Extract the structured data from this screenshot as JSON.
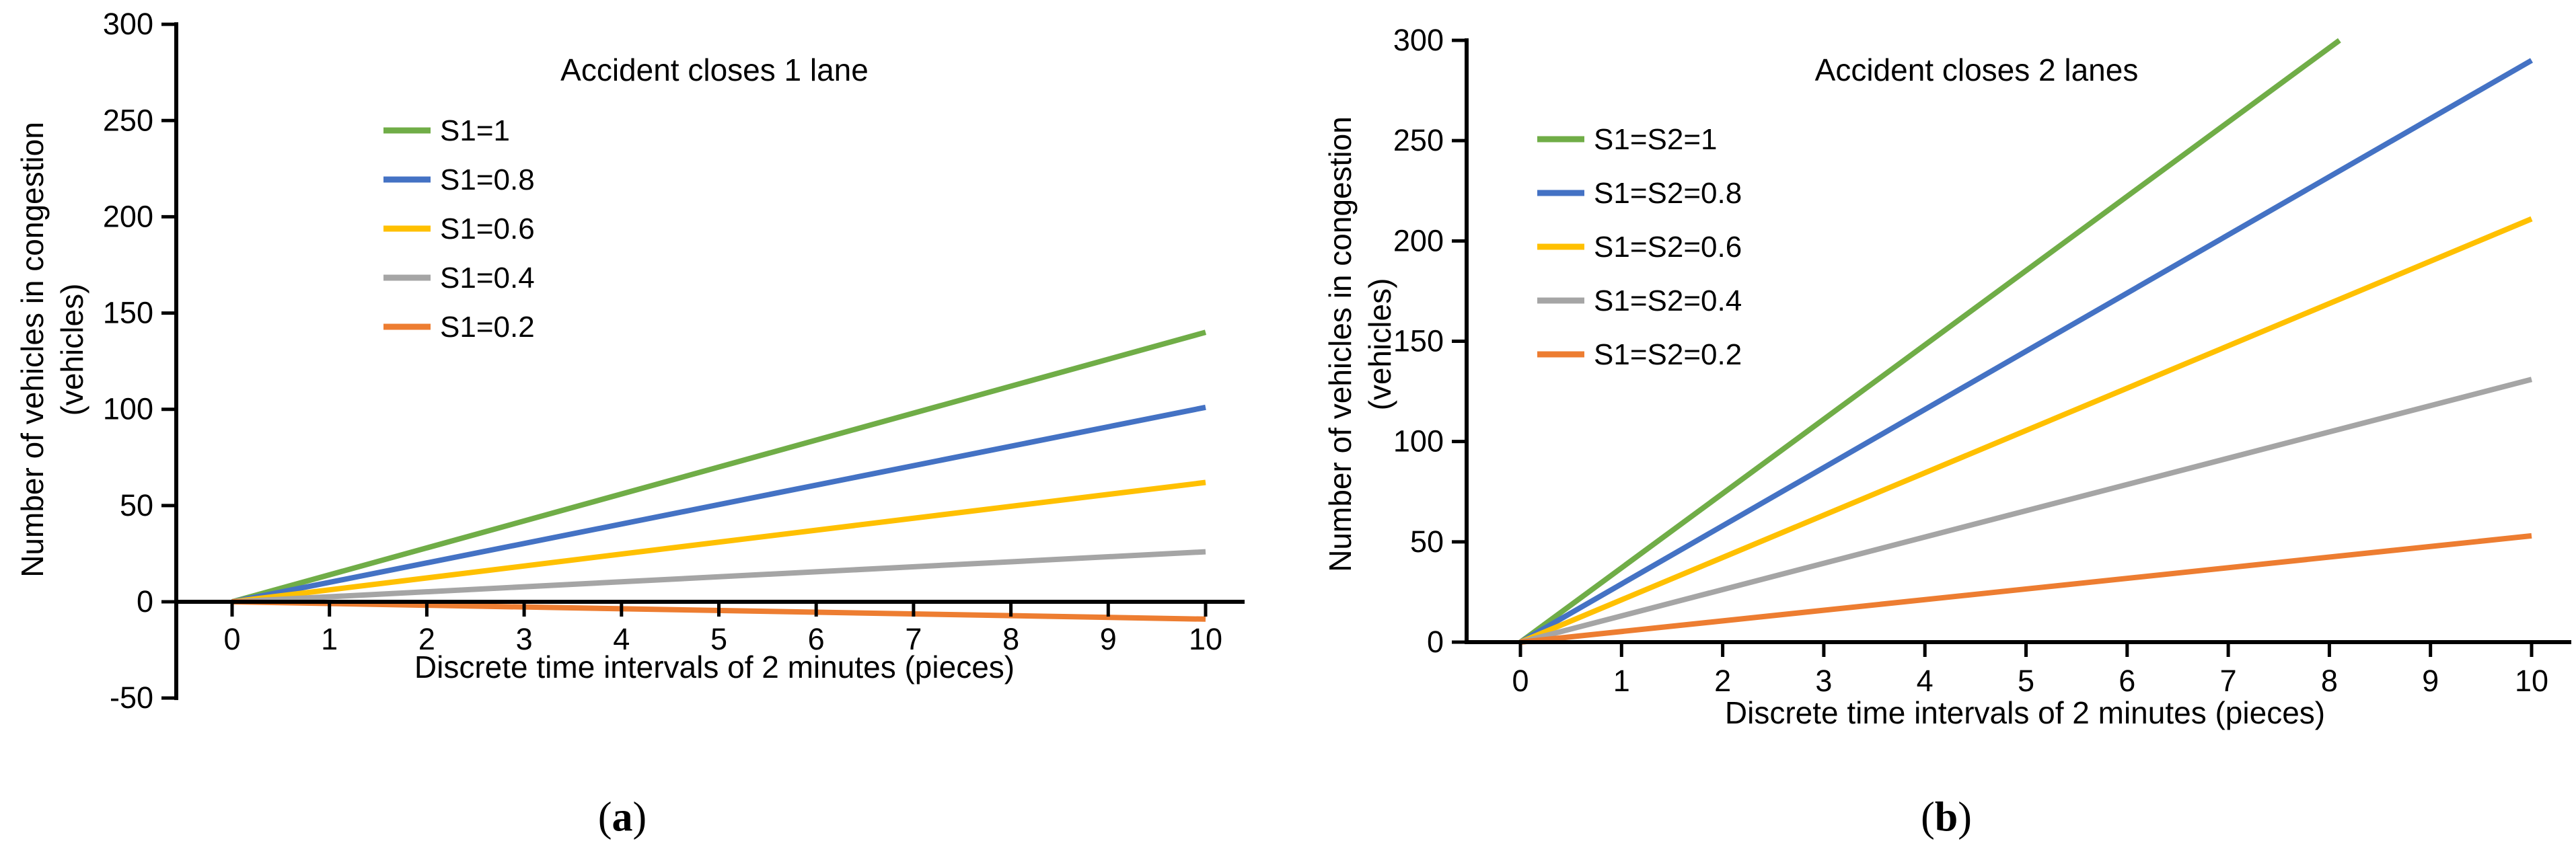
{
  "figure": {
    "background": "#ffffff",
    "captions": [
      {
        "open": "(",
        "letter": "a",
        "close": ")"
      },
      {
        "open": "(",
        "letter": "b",
        "close": ")"
      }
    ]
  },
  "chart_data": [
    {
      "id": "a",
      "type": "line",
      "title": "Accident closes 1 lane",
      "xlabel": "Discrete time intervals of 2 minutes (pieces)",
      "ylabel": "Number of vehicles in congestion (vehicles)",
      "ylabel_line1": "Number of vehicles in congestion",
      "ylabel_line2": "(vehicles)",
      "xlim": [
        0,
        10
      ],
      "ylim": [
        -50,
        300
      ],
      "x_ticks": [
        0,
        1,
        2,
        3,
        4,
        5,
        6,
        7,
        8,
        9,
        10
      ],
      "y_ticks": [
        300,
        250,
        200,
        150,
        100,
        50,
        0,
        -50
      ],
      "grid": false,
      "legend_position": "inside upper-left",
      "series": [
        {
          "name": "S1=1",
          "color": "#70AD47",
          "points": [
            [
              0,
              0
            ],
            [
              10,
              140
            ]
          ]
        },
        {
          "name": "S1=0.8",
          "color": "#4472C4",
          "points": [
            [
              0,
              0
            ],
            [
              10,
              101
            ]
          ]
        },
        {
          "name": "S1=0.6",
          "color": "#FFC000",
          "points": [
            [
              0,
              0
            ],
            [
              10,
              62
            ]
          ]
        },
        {
          "name": "S1=0.4",
          "color": "#A5A5A5",
          "points": [
            [
              0,
              0
            ],
            [
              10,
              26
            ]
          ]
        },
        {
          "name": "S1=0.2",
          "color": "#ED7D31",
          "points": [
            [
              0,
              0
            ],
            [
              10,
              -9
            ]
          ]
        }
      ]
    },
    {
      "id": "b",
      "type": "line",
      "title": "Accident closes 2 lanes",
      "xlabel": "Discrete time intervals of 2 minutes (pieces)",
      "ylabel": "Number of vehicles in congestion (vehicles)",
      "ylabel_line1": "Number of vehicles in congestion",
      "ylabel_line2": "(vehicles)",
      "xlim": [
        0,
        10
      ],
      "ylim": [
        0,
        300
      ],
      "x_ticks": [
        0,
        1,
        2,
        3,
        4,
        5,
        6,
        7,
        8,
        9,
        10
      ],
      "y_ticks": [
        300,
        250,
        200,
        150,
        100,
        50,
        0
      ],
      "grid": false,
      "legend_position": "inside upper-left",
      "series": [
        {
          "name": "S1=S2=1",
          "color": "#70AD47",
          "points": [
            [
              0,
              0
            ],
            [
              8.1,
              300
            ]
          ],
          "clipped_at_top": true
        },
        {
          "name": "S1=S2=0.8",
          "color": "#4472C4",
          "points": [
            [
              0,
              0
            ],
            [
              10,
              290
            ]
          ]
        },
        {
          "name": "S1=S2=0.6",
          "color": "#FFC000",
          "points": [
            [
              0,
              0
            ],
            [
              10,
              211
            ]
          ]
        },
        {
          "name": "S1=S2=0.4",
          "color": "#A5A5A5",
          "points": [
            [
              0,
              0
            ],
            [
              10,
              131
            ]
          ]
        },
        {
          "name": "S1=S2=0.2",
          "color": "#ED7D31",
          "points": [
            [
              0,
              0
            ],
            [
              10,
              53
            ]
          ]
        }
      ]
    }
  ]
}
